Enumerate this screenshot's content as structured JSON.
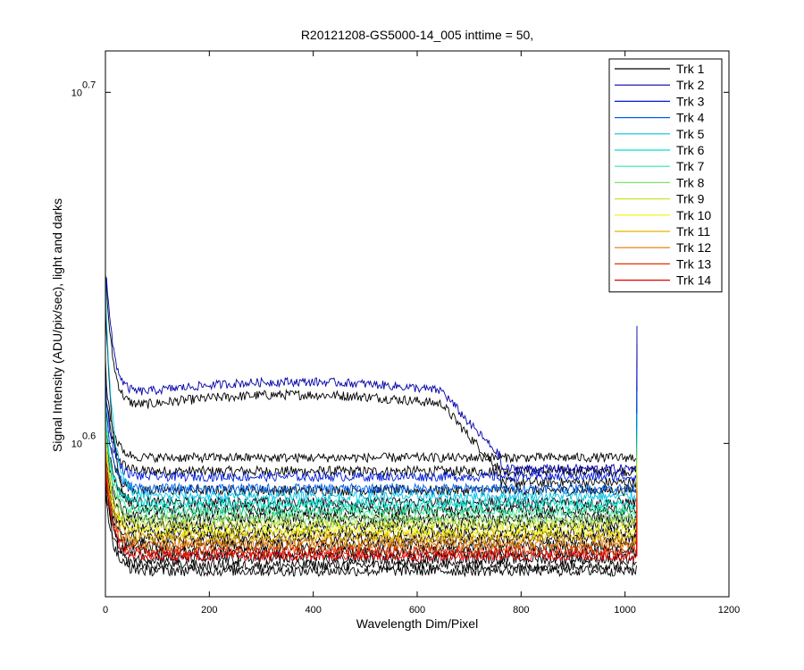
{
  "chart_data": {
    "type": "line",
    "title": "R20121208-GS5000-14_005 inttime = 50,",
    "xlabel": "Wavelength Dim/Pixel",
    "ylabel": "Signal Intensity (ADU/pix/sec), light and darks",
    "xlim": [
      0,
      1200
    ],
    "ylim": [
      3.6,
      5.15
    ],
    "yscale": "log",
    "x_ticks": [
      "0",
      "200",
      "400",
      "600",
      "800",
      "1000",
      "1200"
    ],
    "y_ticks": [
      {
        "value": 3.981,
        "base": "10",
        "exp": "0.6"
      },
      {
        "value": 5.012,
        "base": "10",
        "exp": "0.7"
      }
    ],
    "grid": false,
    "legend_position": "top-right",
    "series": [
      {
        "name": "Trk 1",
        "color": "#000000",
        "level": 3.944,
        "start": 4.16,
        "edge_max": 4.25
      },
      {
        "name": "Trk 2",
        "color": "#0000a8",
        "level": 3.915,
        "start": 4.31,
        "edge_max": 4.3,
        "hump": 4.145,
        "dip": 4.1,
        "hump_end": 760
      },
      {
        "name": "Trk 3",
        "color": "#0019d6",
        "level": 3.895,
        "start": 4.12,
        "edge_max": 4.18
      },
      {
        "name": "Trk 4",
        "color": "#0060e8",
        "level": 3.865,
        "start": 4.08,
        "edge_max": 4.12
      },
      {
        "name": "Trk 5",
        "color": "#00c2e8",
        "level": 3.845,
        "start": 4.4,
        "edge_max": 4.06
      },
      {
        "name": "Trk 6",
        "color": "#00e0d0",
        "level": 3.826,
        "start": 4.05,
        "edge_max": 4.02
      },
      {
        "name": "Trk 7",
        "color": "#30e8a0",
        "level": 3.808,
        "start": 4.02,
        "edge_max": 4.0
      },
      {
        "name": "Trk 8",
        "color": "#80e070",
        "level": 3.79,
        "start": 4.0,
        "edge_max": 3.98
      },
      {
        "name": "Trk 9",
        "color": "#c8e830",
        "level": 3.775,
        "start": 3.98,
        "edge_max": 3.95
      },
      {
        "name": "Trk 10",
        "color": "#f0f000",
        "level": 3.758,
        "start": 3.97,
        "edge_max": 3.93
      },
      {
        "name": "Trk 11",
        "color": "#e8b400",
        "level": 3.742,
        "start": 3.95,
        "edge_max": 3.9
      },
      {
        "name": "Trk 12",
        "color": "#e07800",
        "level": 3.726,
        "start": 3.94,
        "edge_max": 3.88
      },
      {
        "name": "Trk 13",
        "color": "#e83000",
        "level": 3.71,
        "start": 3.92,
        "edge_max": 3.86
      },
      {
        "name": "Trk 14",
        "color": "#e00000",
        "level": 3.697,
        "start": 3.9,
        "edge_max": 3.84
      }
    ],
    "darks": {
      "color": "#000000",
      "note": "dark traces drawn in black just below each light track"
    },
    "x_end": 1023,
    "noise_amplitude": 0.012
  }
}
